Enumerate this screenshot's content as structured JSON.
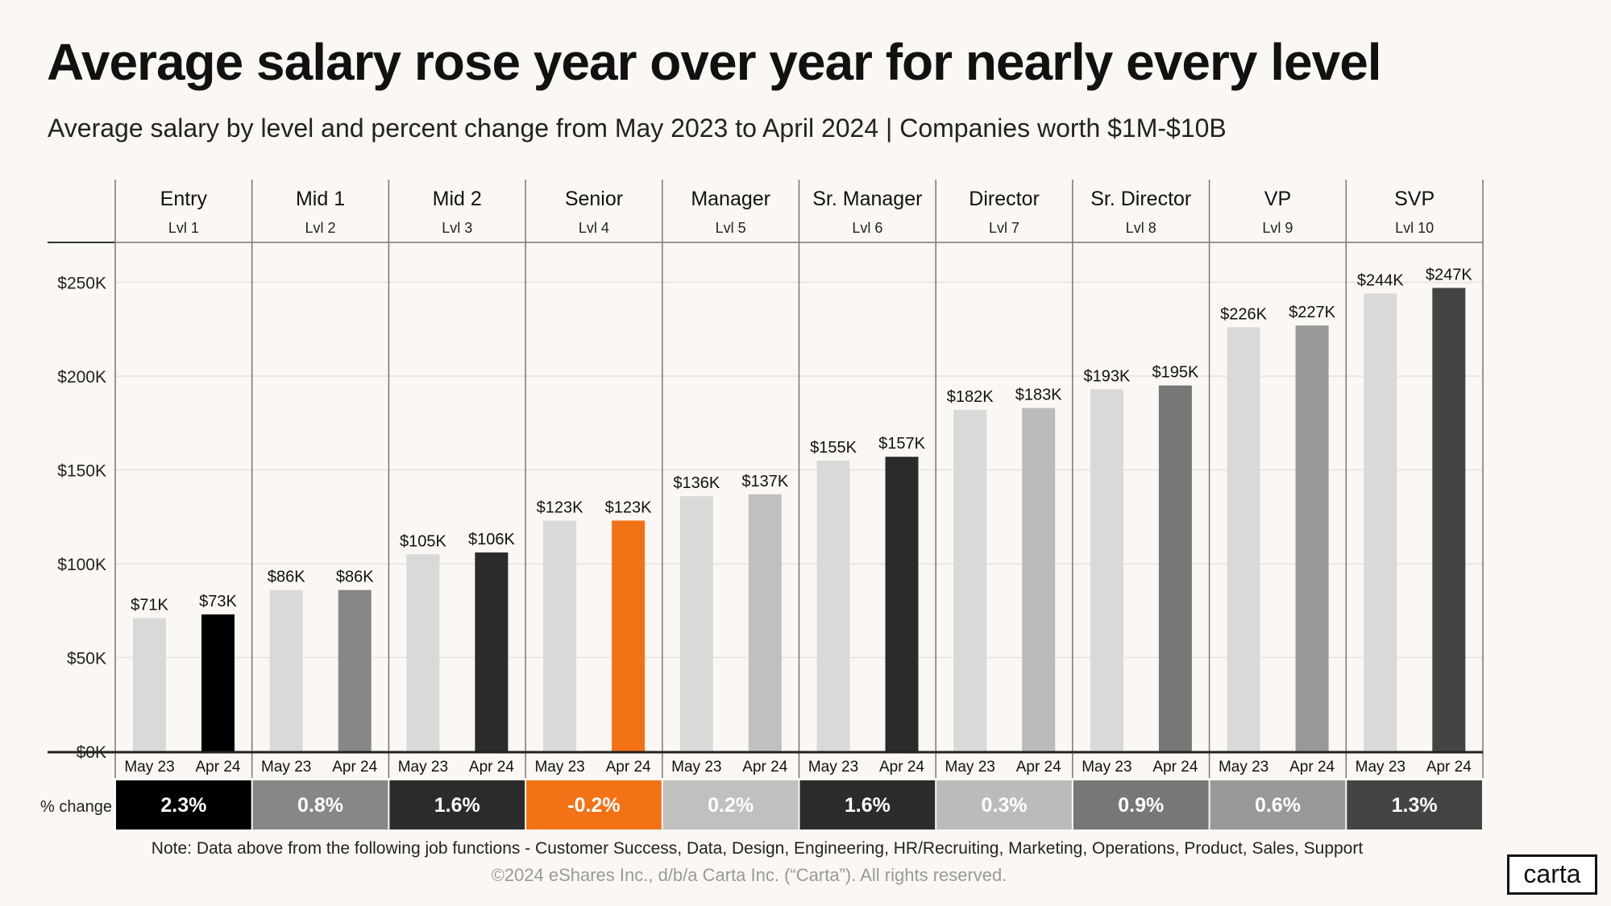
{
  "title": "Average salary rose year over year for nearly every level",
  "subtitle": "Average salary by level and percent change from May 2023 to April 2024  |  Companies worth $1M-$10B",
  "note": "Note:  Data above from the following job functions - Customer Success, Data, Design, Engineering, HR/Recruiting, Marketing, Operations, Product,  Sales, Support",
  "copyright": "©2024 eShares Inc., d/b/a Carta Inc. (“Carta”). All rights reserved.",
  "logo": "carta",
  "chart_data": {
    "type": "bar",
    "ylim": [
      0,
      270
    ],
    "yticks": [
      0,
      50,
      100,
      150,
      200,
      250
    ],
    "ytick_labels": [
      "$0K",
      "$50K",
      "$100K",
      "$150K",
      "$200K",
      "$250K"
    ],
    "grid": true,
    "period_labels": [
      "May 23",
      "Apr 24"
    ],
    "change_row_label": "% change",
    "base_color": "#d9d9d9",
    "groups": [
      {
        "name": "Entry",
        "level": "Lvl 1",
        "values": [
          71,
          73
        ],
        "labels": [
          "$71K",
          "$73K"
        ],
        "change": "2.3%",
        "color": "#000000"
      },
      {
        "name": "Mid 1",
        "level": "Lvl 2",
        "values": [
          86,
          86
        ],
        "labels": [
          "$86K",
          "$86K"
        ],
        "change": "0.8%",
        "color": "#878787"
      },
      {
        "name": "Mid 2",
        "level": "Lvl 3",
        "values": [
          105,
          106
        ],
        "labels": [
          "$105K",
          "$106K"
        ],
        "change": "1.6%",
        "color": "#2b2b2b"
      },
      {
        "name": "Senior",
        "level": "Lvl 4",
        "values": [
          123,
          123
        ],
        "labels": [
          "$123K",
          "$123K"
        ],
        "change": "-0.2%",
        "color": "#f47216"
      },
      {
        "name": "Manager",
        "level": "Lvl 5",
        "values": [
          136,
          137
        ],
        "labels": [
          "$136K",
          "$137K"
        ],
        "change": "0.2%",
        "color": "#c0c0c0"
      },
      {
        "name": "Sr. Manager",
        "level": "Lvl 6",
        "values": [
          155,
          157
        ],
        "labels": [
          "$155K",
          "$157K"
        ],
        "change": "1.6%",
        "color": "#2b2b2b"
      },
      {
        "name": "Director",
        "level": "Lvl 7",
        "values": [
          182,
          183
        ],
        "labels": [
          "$182K",
          "$183K"
        ],
        "change": "0.3%",
        "color": "#bbbbbb"
      },
      {
        "name": "Sr. Director",
        "level": "Lvl 8",
        "values": [
          193,
          195
        ],
        "labels": [
          "$193K",
          "$195K"
        ],
        "change": "0.9%",
        "color": "#777777"
      },
      {
        "name": "VP",
        "level": "Lvl 9",
        "values": [
          226,
          227
        ],
        "labels": [
          "$226K",
          "$227K"
        ],
        "change": "0.6%",
        "color": "#999999"
      },
      {
        "name": "SVP",
        "level": "Lvl 10",
        "values": [
          244,
          247
        ],
        "labels": [
          "$244K",
          "$247K"
        ],
        "change": "1.3%",
        "color": "#444444"
      }
    ]
  }
}
